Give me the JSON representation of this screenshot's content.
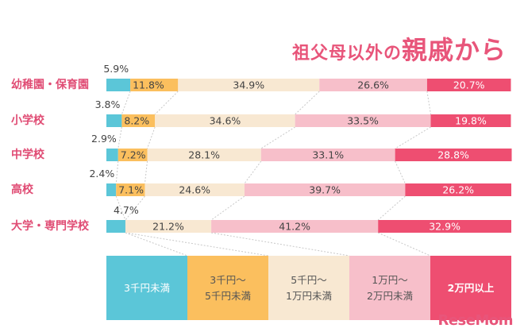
{
  "title": {
    "prefix": "祖父母以外の",
    "main": "親戚から"
  },
  "logo": "ReseMom",
  "colors": [
    "#5bc6d8",
    "#fbbf5e",
    "#f8e8d2",
    "#f7bfca",
    "#ee4e71"
  ],
  "legend": [
    {
      "label": "3千円未満"
    },
    {
      "label": "3千円～\n5千円未満"
    },
    {
      "label": "5千円～\n1万円未満"
    },
    {
      "label": "1万円～\n2万円未満"
    },
    {
      "label": "2万円以上"
    }
  ],
  "chart_data": {
    "type": "bar",
    "stacked": true,
    "orientation": "horizontal",
    "unit": "%",
    "categories": [
      "幼稚園・保育園",
      "小学校",
      "中学校",
      "高校",
      "大学・専門学校"
    ],
    "series": [
      {
        "name": "3千円未満",
        "values": [
          5.9,
          3.8,
          2.9,
          2.4,
          4.7
        ]
      },
      {
        "name": "3千円～5千円未満",
        "values": [
          11.8,
          8.2,
          7.2,
          7.1,
          0
        ]
      },
      {
        "name": "5千円～1万円未満",
        "values": [
          34.9,
          34.6,
          28.1,
          24.6,
          21.2
        ]
      },
      {
        "name": "1万円～2万円未満",
        "values": [
          26.6,
          33.5,
          33.1,
          39.7,
          41.2
        ]
      },
      {
        "name": "2万円以上",
        "values": [
          20.7,
          19.8,
          28.8,
          26.2,
          32.9
        ]
      }
    ],
    "labels": [
      [
        "5.9%",
        "11.8%",
        "34.9%",
        "26.6%",
        "20.7%"
      ],
      [
        "3.8%",
        "8.2%",
        "34.6%",
        "33.5%",
        "19.8%"
      ],
      [
        "2.9%",
        "7.2%",
        "28.1%",
        "33.1%",
        "28.8%"
      ],
      [
        "2.4%",
        "7.1%",
        "24.6%",
        "39.7%",
        "26.2%"
      ],
      [
        "4.7%",
        "",
        "21.2%",
        "41.2%",
        "32.9%"
      ]
    ]
  }
}
